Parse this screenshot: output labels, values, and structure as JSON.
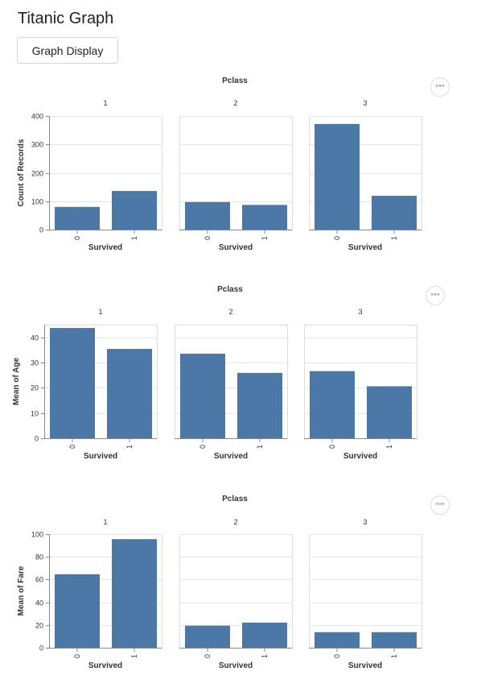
{
  "app": {
    "title": "Titanic Graph",
    "button_label": "Graph Display",
    "more_icon": "more-horizontal-icon",
    "more_glyph": "•••"
  },
  "colors": {
    "bar": "#4c78a8",
    "grid": "#e6e6e6",
    "panel_border": "#dddddd",
    "axis": "#888888"
  },
  "chart_data": [
    {
      "type": "bar",
      "title": "Pclass",
      "facets": [
        "1",
        "2",
        "3"
      ],
      "categories": [
        "0",
        "1"
      ],
      "xlabel": "Survived",
      "ylabel": "Count of Records",
      "ylim": [
        0,
        400
      ],
      "yticks": [
        "0",
        "100",
        "200",
        "300",
        "400"
      ],
      "grid": true,
      "values": [
        [
          80,
          136
        ],
        [
          97,
          87
        ],
        [
          372,
          119
        ]
      ]
    },
    {
      "type": "bar",
      "title": "Pclass",
      "facets": [
        "1",
        "2",
        "3"
      ],
      "categories": [
        "0",
        "1"
      ],
      "xlabel": "Survived",
      "ylabel": "Mean of Age",
      "ylim": [
        0,
        45
      ],
      "yticks": [
        "0",
        "10",
        "20",
        "30",
        "40"
      ],
      "grid": true,
      "values": [
        [
          43.7,
          35.4
        ],
        [
          33.5,
          25.9
        ],
        [
          26.6,
          20.6
        ]
      ]
    },
    {
      "type": "bar",
      "title": "Pclass",
      "facets": [
        "1",
        "2",
        "3"
      ],
      "categories": [
        "0",
        "1"
      ],
      "xlabel": "Survived",
      "ylabel": "Mean of Fare",
      "ylim": [
        0,
        100
      ],
      "yticks": [
        "0",
        "20",
        "40",
        "60",
        "80",
        "100"
      ],
      "grid": true,
      "values": [
        [
          64.7,
          95.6
        ],
        [
          19.4,
          22.1
        ],
        [
          13.7,
          13.7
        ]
      ]
    }
  ]
}
